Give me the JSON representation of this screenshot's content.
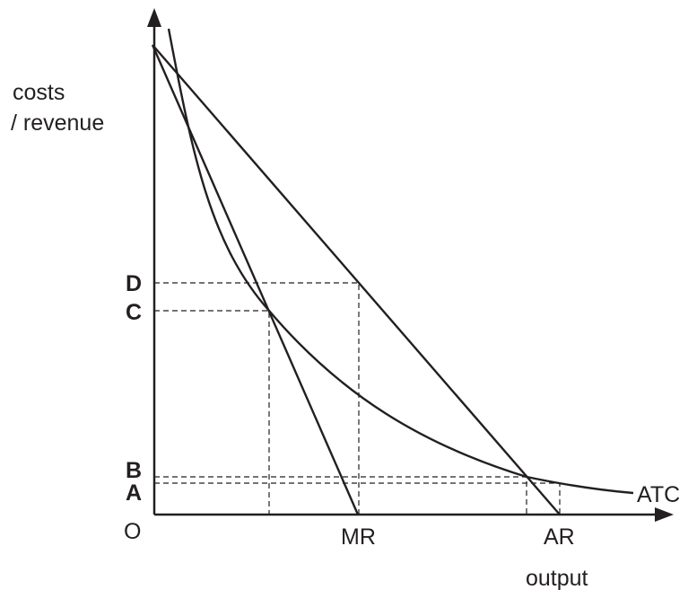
{
  "axes": {
    "y_title_line1": "costs",
    "y_title_line2": "/ revenue",
    "x_title": "output",
    "origin": "O"
  },
  "price_levels": [
    "D",
    "C",
    "B",
    "A"
  ],
  "curves": {
    "mr": "MR",
    "ar": "AR",
    "atc": "ATC"
  }
}
